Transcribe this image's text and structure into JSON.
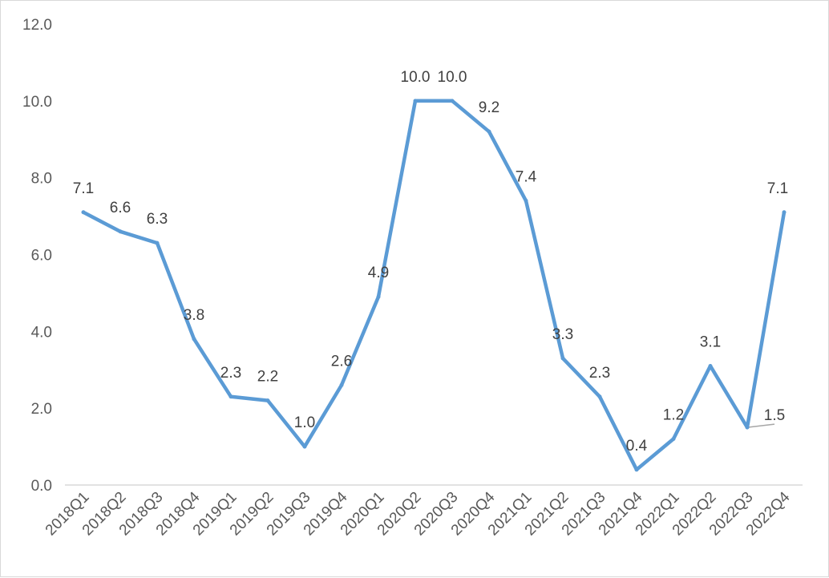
{
  "chart_data": {
    "type": "line",
    "title": "",
    "xlabel": "",
    "ylabel": "",
    "ylim": [
      0,
      12
    ],
    "yticks": [
      "0.0",
      "2.0",
      "4.0",
      "6.0",
      "8.0",
      "10.0",
      "12.0"
    ],
    "grid": false,
    "legend": "none",
    "line_color": "#5b9bd5",
    "categories": [
      "2018Q1",
      "2018Q2",
      "2018Q3",
      "2018Q4",
      "2019Q1",
      "2019Q2",
      "2019Q3",
      "2019Q4",
      "2020Q1",
      "2020Q2",
      "2020Q3",
      "2020Q4",
      "2021Q1",
      "2021Q2",
      "2021Q3",
      "2021Q4",
      "2022Q1",
      "2022Q2",
      "2022Q3",
      "2022Q4"
    ],
    "values": [
      7.1,
      6.6,
      6.3,
      3.8,
      2.3,
      2.2,
      1.0,
      2.6,
      4.9,
      10.0,
      10.0,
      9.2,
      7.4,
      3.3,
      2.3,
      0.4,
      1.2,
      3.1,
      1.5,
      7.1
    ],
    "data_labels": [
      "7.1",
      "6.6",
      "6.3",
      "3.8",
      "2.3",
      "2.2",
      "1.0",
      "2.6",
      "4.9",
      "10.0",
      "10.0",
      "9.2",
      "7.4",
      "3.3",
      "2.3",
      "0.4",
      "1.2",
      "3.1",
      "1.5",
      "7.1"
    ]
  }
}
